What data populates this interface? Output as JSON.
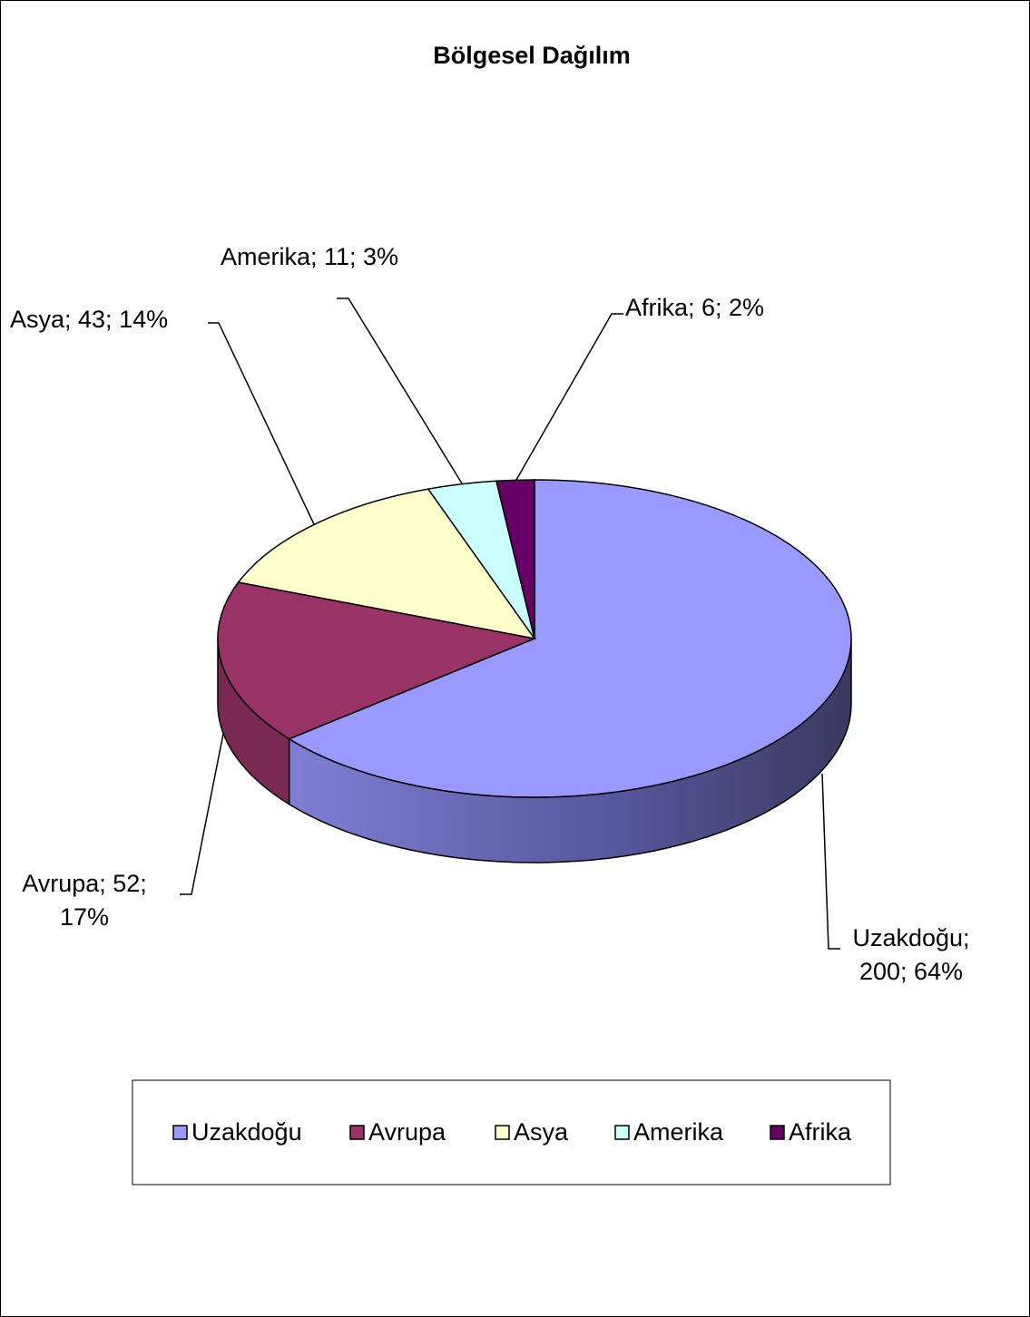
{
  "chart_data": {
    "type": "pie3d",
    "title": "Bölgesel Dağılım",
    "categories": [
      "Uzakdoğu",
      "Avrupa",
      "Asya",
      "Amerika",
      "Afrika"
    ],
    "values": [
      200,
      52,
      43,
      11,
      6
    ],
    "value_labels": [
      "Uzakdoğu; 200; 64%",
      "Avrupa; 52; 17%",
      "Asya; 43; 14%",
      "Amerika; 11; 3%",
      "Afrika; 6; 2%"
    ],
    "colors": [
      "#9999ff",
      "#993366",
      "#ffffcc",
      "#ccffff",
      "#660066"
    ],
    "legend": "bottom"
  }
}
